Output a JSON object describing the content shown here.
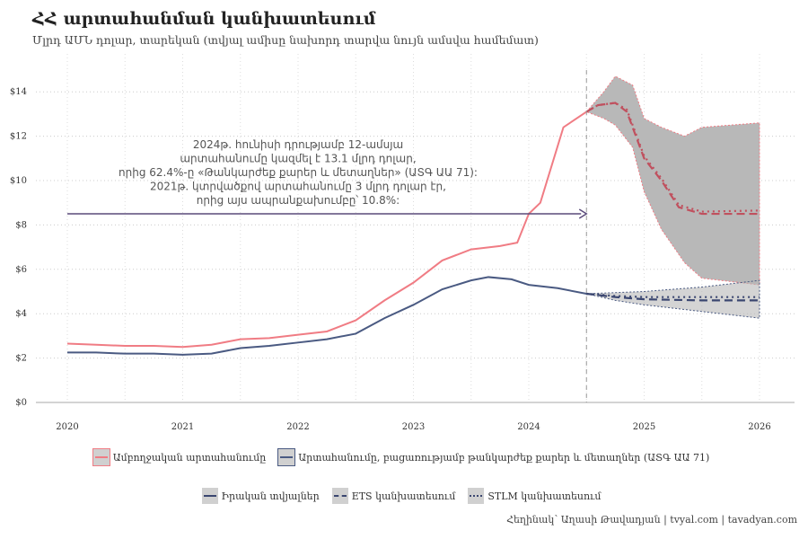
{
  "title": "ՀՀ արտահանման կանխատեսում",
  "subtitle": "Մլրդ ԱՄՆ դոլար, տարեկան (տվյալ ամիսը նախորդ տարվա նույն ամսվա համեմատ)",
  "annotation": [
    "2024թ. հունիսի դրությամբ 12-ամսյա",
    "արտահանումը կազմել է 13.1 մլրդ դոլար,",
    "որից 62.4%-ը «Թանկարժեք քարեր և մետաղներ» (ԱՏԳ ԱԱ 71):",
    "2021թ. կտրվածքով արտահանումը 3 մլրդ դոլար էր,",
    "որից այս ապրանքախումբը՝ 10.8%:"
  ],
  "legend1": [
    "Ամբողջական արտահանումը",
    "Արտահանումը, բացառությամբ թանկարժեք քարեր և մետաղներ (ԱՏԳ ԱԱ 71)"
  ],
  "legend2": [
    "Իրական տվյալներ",
    "ETS կանխատեսում",
    "STLM կանխատեսում"
  ],
  "caption": "Հեղինակ՝ Աղասի Թավադյան   |   tvyal.com   |   tavadyan.com",
  "colors": {
    "total": "#f07c84",
    "excl": "#4a5a82",
    "band": "#b8b8b8"
  },
  "chart_data": {
    "type": "line",
    "ylim": [
      0,
      15
    ],
    "yticks": [
      0,
      2,
      4,
      6,
      8,
      10,
      12,
      14
    ],
    "ytick_labels": [
      "$0",
      "$2",
      "$4",
      "$6",
      "$8",
      "$10",
      "$12",
      "$14"
    ],
    "xticks": [
      2020,
      2021,
      2022,
      2023,
      2024,
      2025,
      2026
    ],
    "xlim": [
      2019.75,
      2026.3
    ],
    "forecast_start": 2024.5,
    "arrow_y": 8.5,
    "series": [
      {
        "name": "Ամբողջական արտահանումը – Իրական տվյալներ",
        "key": "total",
        "x": [
          2020,
          2020.25,
          2020.5,
          2020.75,
          2021,
          2021.25,
          2021.5,
          2021.75,
          2022,
          2022.25,
          2022.5,
          2022.75,
          2023,
          2023.25,
          2023.5,
          2023.75,
          2023.9,
          2024,
          2024.1,
          2024.3,
          2024.5
        ],
        "y": [
          2.65,
          2.6,
          2.55,
          2.55,
          2.5,
          2.6,
          2.85,
          2.9,
          3.05,
          3.2,
          3.7,
          4.6,
          5.4,
          6.4,
          6.9,
          7.05,
          7.2,
          8.5,
          9.0,
          12.4,
          13.1
        ]
      },
      {
        "name": "Արտահանումը առանց ԱՏԳ 71 – Իրական տվյալներ",
        "key": "excl",
        "x": [
          2020,
          2020.25,
          2020.5,
          2020.75,
          2021,
          2021.25,
          2021.5,
          2021.75,
          2022,
          2022.25,
          2022.5,
          2022.75,
          2023,
          2023.25,
          2023.5,
          2023.65,
          2023.85,
          2024,
          2024.25,
          2024.5
        ],
        "y": [
          2.25,
          2.25,
          2.2,
          2.2,
          2.15,
          2.2,
          2.45,
          2.55,
          2.7,
          2.85,
          3.1,
          3.8,
          4.4,
          5.1,
          5.5,
          5.65,
          5.55,
          5.3,
          5.15,
          4.9
        ]
      },
      {
        "name": "Ամբողջական – ETS",
        "key": "total",
        "dash": "ets",
        "x": [
          2024.5,
          2024.6,
          2024.75,
          2024.85,
          2025,
          2025.15,
          2025.3,
          2025.5,
          2026
        ],
        "y": [
          13.1,
          13.4,
          13.5,
          13.1,
          11.0,
          10.0,
          8.8,
          8.5,
          8.5
        ]
      },
      {
        "name": "Ամբողջական – STLM",
        "key": "total",
        "dash": "stlm",
        "x": [
          2024.5,
          2024.6,
          2024.75,
          2024.85,
          2025,
          2025.15,
          2025.3,
          2025.5,
          2026
        ],
        "y": [
          13.1,
          13.4,
          13.5,
          13.2,
          11.1,
          10.1,
          8.9,
          8.6,
          8.65
        ]
      },
      {
        "name": "Առանց 71 – ETS",
        "key": "excl",
        "dash": "ets",
        "x": [
          2024.5,
          2024.75,
          2025,
          2025.5,
          2026
        ],
        "y": [
          4.9,
          4.75,
          4.65,
          4.6,
          4.6
        ]
      },
      {
        "name": "Առանց 71 – STLM",
        "key": "excl",
        "dash": "stlm",
        "x": [
          2024.5,
          2024.75,
          2025,
          2025.5,
          2026
        ],
        "y": [
          4.9,
          4.8,
          4.75,
          4.75,
          4.75
        ]
      }
    ],
    "bands": [
      {
        "key": "total",
        "x": [
          2024.5,
          2024.65,
          2024.75,
          2024.9,
          2025,
          2025.15,
          2025.35,
          2025.5,
          2026
        ],
        "upper": [
          13.1,
          14.0,
          14.7,
          14.3,
          12.8,
          12.4,
          12.0,
          12.4,
          12.6
        ],
        "lower": [
          13.1,
          12.8,
          12.5,
          11.5,
          9.5,
          7.8,
          6.3,
          5.6,
          5.3
        ]
      },
      {
        "key": "excl",
        "x": [
          2024.5,
          2024.75,
          2025,
          2025.5,
          2026
        ],
        "upper": [
          4.9,
          4.95,
          5.0,
          5.2,
          5.5
        ],
        "lower": [
          4.9,
          4.6,
          4.4,
          4.1,
          3.8
        ]
      }
    ]
  }
}
